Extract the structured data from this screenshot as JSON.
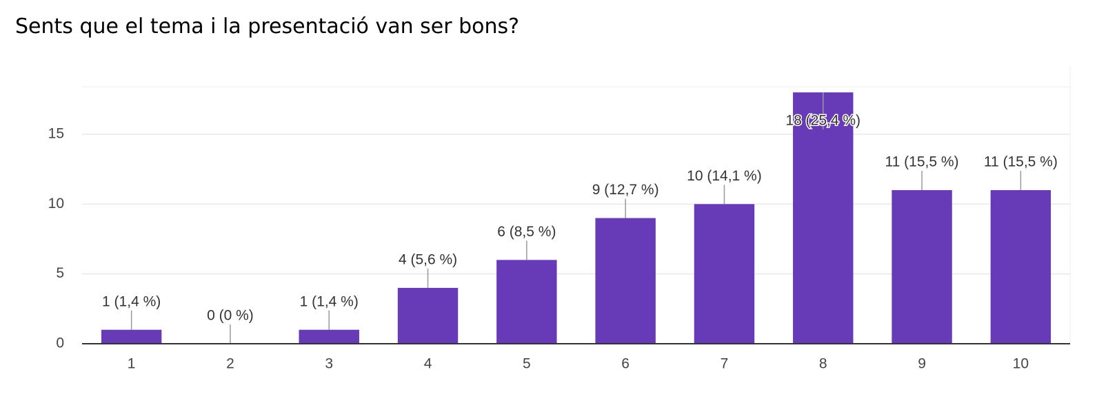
{
  "chart_data": {
    "type": "bar",
    "title": "Sents que el tema i la presentació van ser bons?",
    "categories": [
      "1",
      "2",
      "3",
      "4",
      "5",
      "6",
      "7",
      "8",
      "9",
      "10"
    ],
    "values": [
      1,
      0,
      1,
      4,
      6,
      9,
      10,
      18,
      11,
      11
    ],
    "value_labels": [
      "1 (1,4 %)",
      "0 (0 %)",
      "1 (1,4 %)",
      "4 (5,6 %)",
      "6 (8,5 %)",
      "9 (12,7 %)",
      "10 (14,1 %)",
      "18 (25,4 %)",
      "11 (15,5 %)",
      "11 (15,5 %)"
    ],
    "color": "#673ab7",
    "ylim": [
      0,
      18.4
    ],
    "yticks": [
      0,
      5,
      10,
      15
    ],
    "grid": true
  }
}
